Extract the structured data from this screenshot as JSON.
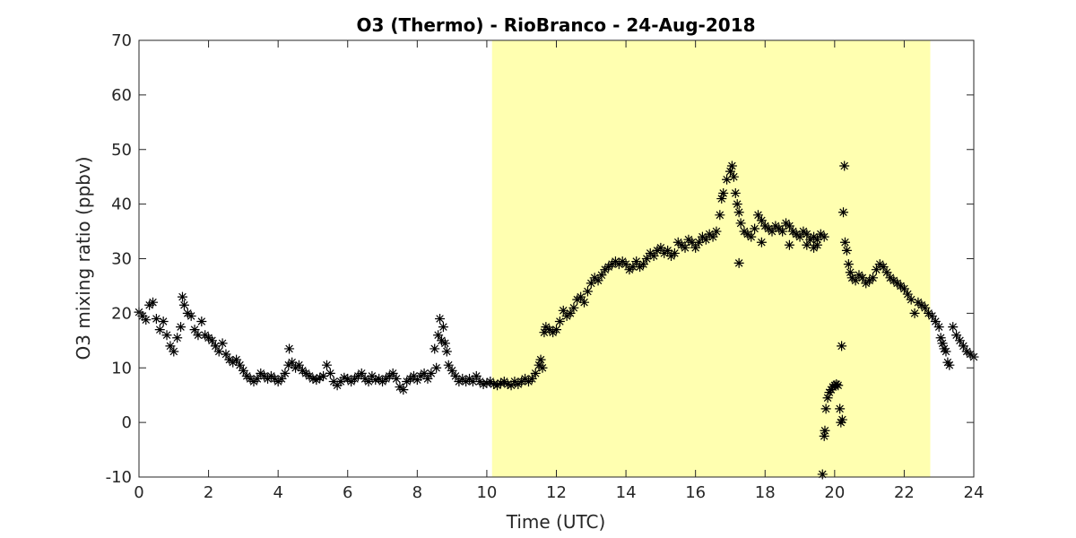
{
  "chart_data": {
    "type": "scatter",
    "title": "O3 (Thermo) - RioBranco - 24-Aug-2018",
    "xlabel": "Time (UTC)",
    "ylabel": "O3 mixing ratio (ppbv)",
    "xlim": [
      0,
      24
    ],
    "ylim": [
      -10,
      70
    ],
    "xticks": [
      0,
      2,
      4,
      6,
      8,
      10,
      12,
      14,
      16,
      18,
      20,
      22,
      24
    ],
    "yticks": [
      -10,
      0,
      10,
      20,
      30,
      40,
      50,
      60,
      70
    ],
    "grid": false,
    "marker": "asterisk",
    "marker_color": "#000000",
    "daylight_band": {
      "x_start": 10.15,
      "x_end": 22.75,
      "color": "#ffffb0"
    },
    "series": [
      {
        "points": [
          [
            0.0,
            20.2
          ],
          [
            0.1,
            19.5
          ],
          [
            0.2,
            18.8
          ],
          [
            0.3,
            21.5
          ],
          [
            0.4,
            22.0
          ],
          [
            0.5,
            19.0
          ],
          [
            0.6,
            17.0
          ],
          [
            0.7,
            18.5
          ],
          [
            0.8,
            16.0
          ],
          [
            0.9,
            14.0
          ],
          [
            1.0,
            13.0
          ],
          [
            1.1,
            15.5
          ],
          [
            1.2,
            17.5
          ],
          [
            1.25,
            23.0
          ],
          [
            1.3,
            21.5
          ],
          [
            1.4,
            20.0
          ],
          [
            1.5,
            19.5
          ],
          [
            1.6,
            17.0
          ],
          [
            1.7,
            16.0
          ],
          [
            1.8,
            18.5
          ],
          [
            1.9,
            16.0
          ],
          [
            2.0,
            15.5
          ],
          [
            2.1,
            15.0
          ],
          [
            2.2,
            14.0
          ],
          [
            2.3,
            13.0
          ],
          [
            2.4,
            14.5
          ],
          [
            2.5,
            12.5
          ],
          [
            2.6,
            11.5
          ],
          [
            2.7,
            11.0
          ],
          [
            2.8,
            11.5
          ],
          [
            2.9,
            10.5
          ],
          [
            3.0,
            9.5
          ],
          [
            3.1,
            8.5
          ],
          [
            3.2,
            8.0
          ],
          [
            3.3,
            7.5
          ],
          [
            3.4,
            8.0
          ],
          [
            3.5,
            9.0
          ],
          [
            3.6,
            8.5
          ],
          [
            3.7,
            8.0
          ],
          [
            3.8,
            8.5
          ],
          [
            3.9,
            8.0
          ],
          [
            4.0,
            7.5
          ],
          [
            4.1,
            8.0
          ],
          [
            4.2,
            9.0
          ],
          [
            4.3,
            10.5
          ],
          [
            4.32,
            13.5
          ],
          [
            4.4,
            11.0
          ],
          [
            4.5,
            10.0
          ],
          [
            4.6,
            10.5
          ],
          [
            4.7,
            9.5
          ],
          [
            4.8,
            9.0
          ],
          [
            4.9,
            8.5
          ],
          [
            5.0,
            8.0
          ],
          [
            5.1,
            7.8
          ],
          [
            5.2,
            8.2
          ],
          [
            5.3,
            8.5
          ],
          [
            5.4,
            10.5
          ],
          [
            5.5,
            9.0
          ],
          [
            5.6,
            7.5
          ],
          [
            5.7,
            6.8
          ],
          [
            5.8,
            7.5
          ],
          [
            5.9,
            8.2
          ],
          [
            6.0,
            8.0
          ],
          [
            6.1,
            7.5
          ],
          [
            6.2,
            8.0
          ],
          [
            6.3,
            8.5
          ],
          [
            6.4,
            9.0
          ],
          [
            6.5,
            8.0
          ],
          [
            6.6,
            7.5
          ],
          [
            6.7,
            8.5
          ],
          [
            6.8,
            7.8
          ],
          [
            6.9,
            8.0
          ],
          [
            7.0,
            7.5
          ],
          [
            7.1,
            8.0
          ],
          [
            7.2,
            8.5
          ],
          [
            7.3,
            9.0
          ],
          [
            7.4,
            8.0
          ],
          [
            7.5,
            6.5
          ],
          [
            7.6,
            6.0
          ],
          [
            7.7,
            7.5
          ],
          [
            7.8,
            8.0
          ],
          [
            7.9,
            8.5
          ],
          [
            8.0,
            7.8
          ],
          [
            8.1,
            8.5
          ],
          [
            8.2,
            9.0
          ],
          [
            8.3,
            8.0
          ],
          [
            8.4,
            9.0
          ],
          [
            8.5,
            13.5
          ],
          [
            8.55,
            10.0
          ],
          [
            8.6,
            16.0
          ],
          [
            8.65,
            19.0
          ],
          [
            8.7,
            15.0
          ],
          [
            8.75,
            17.5
          ],
          [
            8.8,
            14.5
          ],
          [
            8.85,
            13.0
          ],
          [
            8.9,
            10.5
          ],
          [
            9.0,
            9.5
          ],
          [
            9.1,
            8.5
          ],
          [
            9.2,
            7.5
          ],
          [
            9.3,
            8.0
          ],
          [
            9.4,
            7.5
          ],
          [
            9.5,
            8.0
          ],
          [
            9.6,
            7.5
          ],
          [
            9.7,
            8.5
          ],
          [
            9.8,
            7.5
          ],
          [
            9.9,
            7.0
          ],
          [
            10.0,
            7.2
          ],
          [
            10.1,
            7.5
          ],
          [
            10.2,
            7.0
          ],
          [
            10.3,
            6.8
          ],
          [
            10.4,
            7.2
          ],
          [
            10.5,
            7.5
          ],
          [
            10.6,
            7.0
          ],
          [
            10.7,
            6.8
          ],
          [
            10.8,
            7.5
          ],
          [
            10.9,
            7.0
          ],
          [
            11.0,
            7.5
          ],
          [
            11.1,
            8.0
          ],
          [
            11.2,
            7.5
          ],
          [
            11.3,
            8.0
          ],
          [
            11.4,
            9.0
          ],
          [
            11.5,
            10.5
          ],
          [
            11.55,
            11.5
          ],
          [
            11.6,
            10.0
          ],
          [
            11.65,
            16.5
          ],
          [
            11.7,
            17.5
          ],
          [
            11.8,
            17.0
          ],
          [
            11.9,
            16.5
          ],
          [
            12.0,
            17.0
          ],
          [
            12.1,
            18.5
          ],
          [
            12.2,
            20.5
          ],
          [
            12.3,
            19.5
          ],
          [
            12.4,
            20.0
          ],
          [
            12.5,
            21.0
          ],
          [
            12.6,
            22.5
          ],
          [
            12.7,
            23.0
          ],
          [
            12.8,
            22.0
          ],
          [
            12.9,
            24.0
          ],
          [
            13.0,
            25.5
          ],
          [
            13.1,
            26.5
          ],
          [
            13.2,
            26.0
          ],
          [
            13.3,
            27.0
          ],
          [
            13.4,
            28.0
          ],
          [
            13.5,
            28.5
          ],
          [
            13.6,
            29.0
          ],
          [
            13.7,
            29.5
          ],
          [
            13.8,
            29.0
          ],
          [
            13.9,
            29.5
          ],
          [
            14.0,
            29.0
          ],
          [
            14.1,
            28.0
          ],
          [
            14.2,
            28.5
          ],
          [
            14.3,
            29.5
          ],
          [
            14.4,
            28.5
          ],
          [
            14.5,
            29.0
          ],
          [
            14.6,
            30.0
          ],
          [
            14.7,
            31.0
          ],
          [
            14.8,
            30.5
          ],
          [
            14.9,
            31.5
          ],
          [
            15.0,
            32.0
          ],
          [
            15.1,
            31.0
          ],
          [
            15.2,
            31.5
          ],
          [
            15.3,
            30.5
          ],
          [
            15.4,
            31.0
          ],
          [
            15.5,
            33.0
          ],
          [
            15.6,
            32.5
          ],
          [
            15.7,
            32.0
          ],
          [
            15.8,
            33.5
          ],
          [
            15.9,
            33.0
          ],
          [
            16.0,
            32.0
          ],
          [
            16.1,
            33.0
          ],
          [
            16.2,
            34.0
          ],
          [
            16.3,
            33.5
          ],
          [
            16.4,
            34.5
          ],
          [
            16.5,
            34.0
          ],
          [
            16.6,
            35.0
          ],
          [
            16.7,
            38.0
          ],
          [
            16.75,
            41.0
          ],
          [
            16.8,
            42.0
          ],
          [
            16.9,
            44.5
          ],
          [
            17.0,
            46.0
          ],
          [
            17.05,
            47.0
          ],
          [
            17.1,
            45.0
          ],
          [
            17.15,
            42.0
          ],
          [
            17.2,
            40.0
          ],
          [
            17.25,
            38.5
          ],
          [
            17.3,
            36.5
          ],
          [
            17.4,
            35.0
          ],
          [
            17.5,
            34.5
          ],
          [
            17.6,
            34.0
          ],
          [
            17.7,
            35.5
          ],
          [
            17.8,
            38.0
          ],
          [
            17.9,
            37.0
          ],
          [
            18.0,
            36.0
          ],
          [
            18.1,
            35.5
          ],
          [
            18.2,
            35.0
          ],
          [
            18.3,
            36.0
          ],
          [
            18.4,
            35.5
          ],
          [
            18.5,
            35.0
          ],
          [
            18.6,
            36.5
          ],
          [
            18.7,
            36.0
          ],
          [
            18.8,
            35.0
          ],
          [
            18.9,
            34.5
          ],
          [
            19.0,
            34.0
          ],
          [
            19.1,
            35.0
          ],
          [
            19.2,
            34.5
          ],
          [
            19.3,
            33.5
          ],
          [
            19.4,
            34.0
          ],
          [
            19.5,
            33.5
          ],
          [
            19.6,
            34.5
          ],
          [
            19.7,
            34.0
          ],
          [
            17.25,
            29.2
          ],
          [
            17.9,
            33.0
          ],
          [
            18.7,
            32.5
          ],
          [
            19.2,
            32.5
          ],
          [
            19.4,
            32.0
          ],
          [
            19.5,
            32.5
          ],
          [
            19.65,
            -9.5
          ],
          [
            19.7,
            -2.5
          ],
          [
            19.72,
            -1.5
          ],
          [
            19.75,
            2.5
          ],
          [
            19.8,
            4.5
          ],
          [
            19.85,
            5.5
          ],
          [
            19.9,
            6.0
          ],
          [
            19.95,
            6.5
          ],
          [
            20.0,
            6.8
          ],
          [
            20.05,
            7.0
          ],
          [
            20.1,
            6.8
          ],
          [
            20.15,
            2.5
          ],
          [
            20.18,
            0.0
          ],
          [
            20.2,
            14.0
          ],
          [
            20.22,
            0.5
          ],
          [
            20.25,
            38.5
          ],
          [
            20.28,
            47.0
          ],
          [
            20.3,
            33.0
          ],
          [
            20.35,
            31.5
          ],
          [
            20.4,
            29.0
          ],
          [
            20.45,
            27.5
          ],
          [
            20.5,
            26.5
          ],
          [
            20.6,
            26.0
          ],
          [
            20.7,
            27.0
          ],
          [
            20.8,
            26.5
          ],
          [
            20.9,
            25.5
          ],
          [
            21.0,
            26.0
          ],
          [
            21.1,
            26.5
          ],
          [
            21.2,
            28.0
          ],
          [
            21.3,
            29.0
          ],
          [
            21.4,
            28.5
          ],
          [
            21.5,
            27.5
          ],
          [
            21.6,
            26.5
          ],
          [
            21.7,
            26.0
          ],
          [
            21.8,
            25.5
          ],
          [
            21.9,
            25.0
          ],
          [
            22.0,
            24.5
          ],
          [
            22.1,
            23.5
          ],
          [
            22.2,
            22.5
          ],
          [
            22.3,
            20.0
          ],
          [
            22.4,
            22.0
          ],
          [
            22.5,
            21.5
          ],
          [
            22.6,
            21.0
          ],
          [
            22.7,
            20.0
          ],
          [
            22.8,
            19.5
          ],
          [
            22.9,
            18.5
          ],
          [
            23.0,
            17.5
          ],
          [
            23.05,
            15.5
          ],
          [
            23.1,
            14.5
          ],
          [
            23.15,
            13.5
          ],
          [
            23.2,
            13.0
          ],
          [
            23.25,
            11.0
          ],
          [
            23.3,
            10.5
          ],
          [
            23.4,
            17.5
          ],
          [
            23.5,
            16.0
          ],
          [
            23.6,
            15.0
          ],
          [
            23.7,
            14.0
          ],
          [
            23.8,
            13.0
          ],
          [
            23.9,
            12.5
          ],
          [
            24.0,
            12.0
          ]
        ]
      }
    ]
  }
}
